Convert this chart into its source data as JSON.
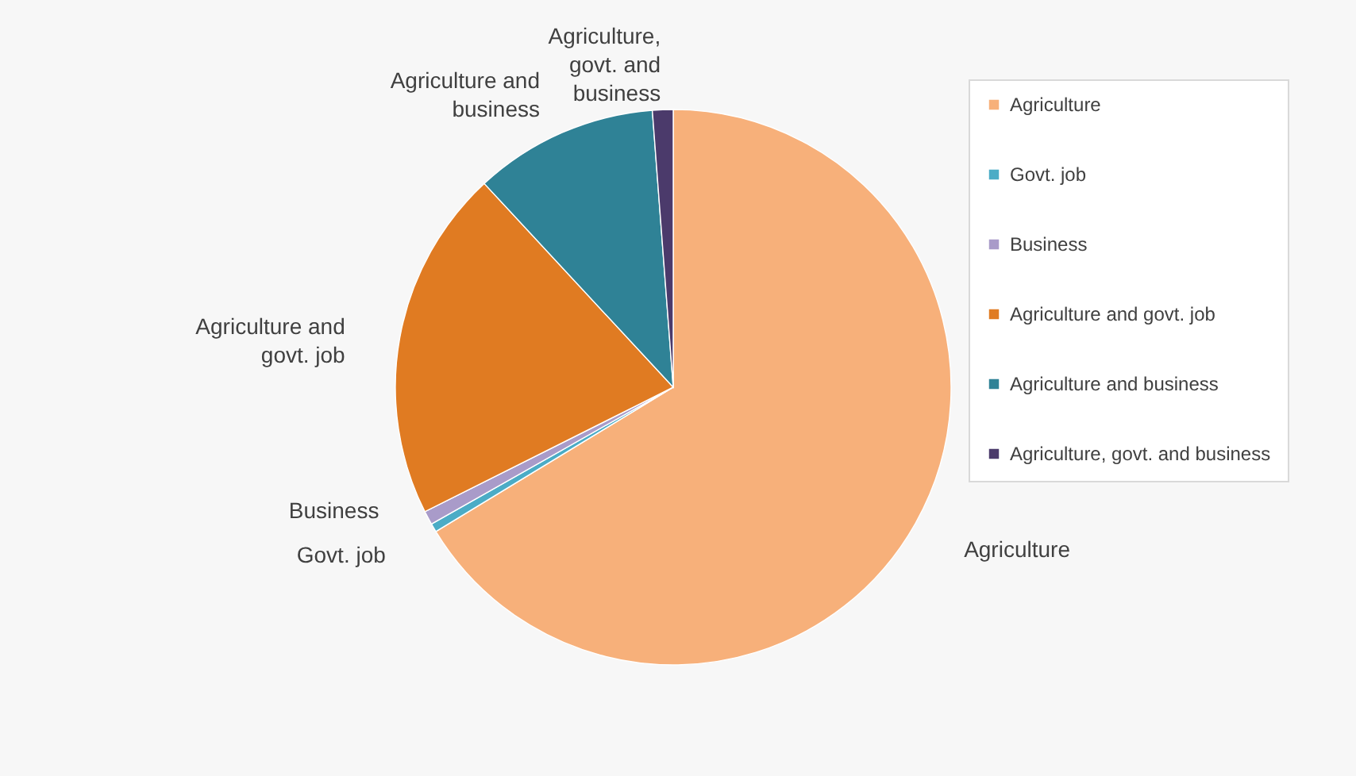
{
  "chart_data": {
    "type": "pie",
    "categories": [
      "Agriculture",
      "Govt. job",
      "Business",
      "Agriculture and govt. job",
      "Agriculture and business",
      "Agriculture, govt. and business"
    ],
    "values": [
      66.3,
      0.5,
      0.8,
      20.5,
      10.7,
      1.2
    ],
    "colors": [
      "#f7b07a",
      "#4bacc6",
      "#a99bc9",
      "#e07b22",
      "#2f8296",
      "#4b3a6b"
    ],
    "legend": "right"
  }
}
